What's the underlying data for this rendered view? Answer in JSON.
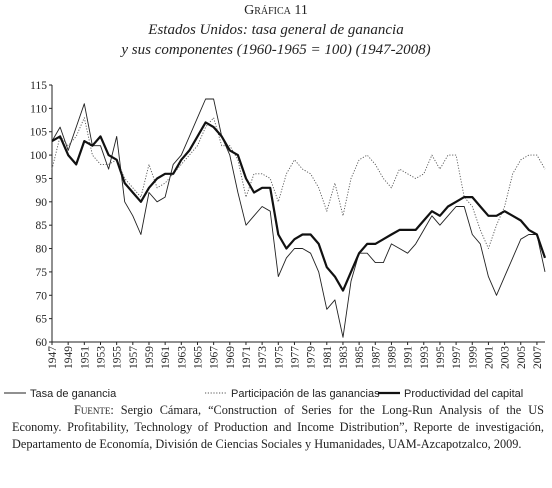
{
  "chart_data": {
    "type": "line",
    "title": "Gráfica 11",
    "subtitle": [
      "Estados Unidos: tasa general de ganancia",
      "y sus componentes (1960-1965 = 100) (1947-2008)"
    ],
    "x": [
      1947,
      1948,
      1949,
      1950,
      1951,
      1952,
      1953,
      1954,
      1955,
      1956,
      1957,
      1958,
      1959,
      1960,
      1961,
      1962,
      1963,
      1964,
      1965,
      1966,
      1967,
      1968,
      1969,
      1970,
      1971,
      1972,
      1973,
      1974,
      1975,
      1976,
      1977,
      1978,
      1979,
      1980,
      1981,
      1982,
      1983,
      1984,
      1985,
      1986,
      1987,
      1988,
      1989,
      1990,
      1991,
      1992,
      1993,
      1994,
      1995,
      1996,
      1997,
      1998,
      1999,
      2000,
      2001,
      2002,
      2003,
      2004,
      2005,
      2006,
      2007,
      2008
    ],
    "series": [
      {
        "name": "Tasa de ganancia",
        "color": "#222222",
        "style": "thin",
        "values": [
          103,
          106,
          101,
          106,
          111,
          102,
          102,
          97,
          104,
          90,
          87,
          83,
          92,
          90,
          91,
          98,
          100,
          104,
          108,
          112,
          112,
          104,
          100,
          92,
          85,
          87,
          89,
          88,
          74,
          78,
          80,
          80,
          79,
          75,
          67,
          69,
          61,
          73,
          79,
          79,
          77,
          77,
          81,
          80,
          79,
          81,
          84,
          87,
          85,
          87,
          89,
          89,
          83,
          81,
          74,
          70,
          74,
          78,
          82,
          83,
          83,
          75
        ]
      },
      {
        "name": "Participación de las ganancias",
        "color": "#555555",
        "style": "dotted",
        "values": [
          97,
          104,
          102,
          104,
          108,
          100,
          98,
          98,
          99,
          95,
          93,
          91,
          98,
          93,
          94,
          96,
          98,
          100,
          102,
          106,
          108,
          102,
          102,
          99,
          91,
          96,
          96,
          95,
          90,
          96,
          99,
          97,
          96,
          93,
          88,
          94,
          87,
          95,
          99,
          100,
          98,
          95,
          93,
          97,
          96,
          95,
          96,
          100,
          97,
          100,
          100,
          91,
          89,
          84,
          80,
          85,
          89,
          96,
          99,
          100,
          100,
          97
        ]
      },
      {
        "name": "Productividad del capital",
        "color": "#111111",
        "style": "thick",
        "values": [
          103,
          104,
          100,
          98,
          103,
          102,
          104,
          100,
          99,
          94,
          92,
          90,
          93,
          95,
          96,
          96,
          99,
          101,
          104,
          107,
          106,
          104,
          101,
          100,
          95,
          92,
          93,
          93,
          83,
          80,
          82,
          83,
          83,
          81,
          76,
          74,
          71,
          75,
          79,
          81,
          81,
          82,
          83,
          84,
          84,
          84,
          86,
          88,
          87,
          89,
          90,
          91,
          91,
          89,
          87,
          87,
          88,
          87,
          86,
          84,
          83,
          78
        ]
      }
    ],
    "xlim": [
      1947,
      2008
    ],
    "xticks": [
      1947,
      1949,
      1951,
      1953,
      1955,
      1957,
      1959,
      1961,
      1963,
      1965,
      1967,
      1969,
      1971,
      1973,
      1975,
      1977,
      1979,
      1981,
      1983,
      1985,
      1987,
      1989,
      1991,
      1993,
      1995,
      1997,
      1999,
      2001,
      2003,
      2005,
      2007
    ],
    "ylim": [
      60,
      115
    ],
    "yticks": [
      60,
      65,
      70,
      75,
      80,
      85,
      90,
      95,
      100,
      105,
      110,
      115
    ],
    "grid": false,
    "legend": "bottom",
    "source_label": "Fuente:",
    "source_text": " Sergio Cámara, “Construction of Series for the Long-Run Analysis of the US Economy. Profitability, Technology of Production and Income Distribution”, Reporte de investigación, Departamento de Economía, División de Ciencias Sociales y Humanidades, UAM-Azcapotzalco, 2009."
  }
}
